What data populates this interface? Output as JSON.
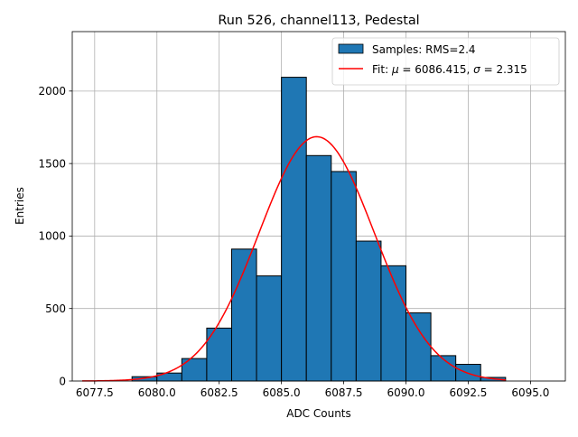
{
  "chart_data": {
    "type": "bar",
    "title": "Run 526, channel113, Pedestal",
    "xlabel": "ADC Counts",
    "ylabel": "Entries",
    "xlim": [
      6076.6,
      6096.4
    ],
    "ylim": [
      0,
      2410
    ],
    "grid": true,
    "legend_position": "top-right",
    "x_ticks": [
      6077.5,
      6080.0,
      6082.5,
      6085.0,
      6087.5,
      6090.0,
      6092.5,
      6095.0
    ],
    "x_tick_labels": [
      "6077.5",
      "6080.0",
      "6082.5",
      "6085.0",
      "6087.5",
      "6090.0",
      "6092.5",
      "6095.0"
    ],
    "y_ticks": [
      0,
      500,
      1000,
      1500,
      2000
    ],
    "y_tick_labels": [
      "0",
      "500",
      "1000",
      "1500",
      "2000"
    ],
    "histogram": {
      "name": "Samples: RMS=2.4",
      "color": "#1f77b4",
      "edge_color": "#000000",
      "bin_edges": [
        6079,
        6080,
        6081,
        6082,
        6083,
        6084,
        6085,
        6086,
        6087,
        6088,
        6089,
        6090,
        6091,
        6092,
        6093,
        6094
      ],
      "counts": [
        30,
        55,
        155,
        365,
        910,
        725,
        2095,
        1555,
        1445,
        965,
        795,
        470,
        175,
        115,
        25
      ]
    },
    "fit": {
      "name": "Fit: μ = 6086.415, σ = 2.315",
      "name_parts": [
        "Fit: ",
        "μ",
        " = 6086.415, ",
        "σ",
        " = 2.315"
      ],
      "color": "#ff0000",
      "mu": 6086.415,
      "sigma": 2.315,
      "amplitude": 1685,
      "x_range": [
        6077.0,
        6094.0
      ]
    }
  }
}
